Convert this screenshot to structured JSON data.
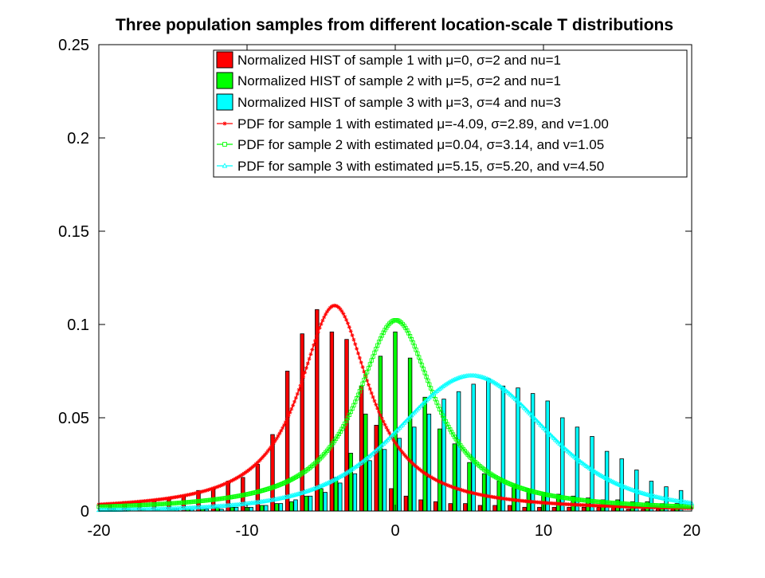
{
  "chart_data": {
    "type": "bar",
    "title": "Three population samples from different location-scale T distributions",
    "xlabel": "",
    "ylabel": "",
    "xlim": [
      -20,
      20
    ],
    "ylim": [
      0,
      0.25
    ],
    "xticks": [
      "-20",
      "-10",
      "0",
      "10",
      "20"
    ],
    "yticks": [
      "0",
      "0.05",
      "0.1",
      "0.15",
      "0.2",
      "0.25"
    ],
    "grid": false,
    "legend_position": "top-right",
    "colors": {
      "sample1": "#ff0000",
      "sample2": "#00ff00",
      "sample3": "#00ffff"
    },
    "histograms": [
      {
        "name": "Normalized HIST of sample 1 with μ=0, σ=2 and nu=1",
        "color": "#ff0000",
        "x": [
          -19,
          -18,
          -17,
          -16,
          -15,
          -14,
          -13,
          -12,
          -11,
          -10,
          -9,
          -8,
          -7,
          -6,
          -5,
          -4,
          -3,
          -2,
          -1,
          0,
          1,
          2,
          3,
          4,
          5,
          6,
          7,
          8,
          9,
          10,
          11,
          12,
          13,
          14,
          15,
          16,
          17,
          18,
          19
        ],
        "values": [
          0.004,
          0.005,
          0.005,
          0.006,
          0.007,
          0.008,
          0.011,
          0.012,
          0.016,
          0.018,
          0.025,
          0.041,
          0.075,
          0.095,
          0.108,
          0.096,
          0.092,
          0.067,
          0.046,
          0.012,
          0.008,
          0.006,
          0.005,
          0.004,
          0.004,
          0.003,
          0.003,
          0.003,
          0.002,
          0.002,
          0.002,
          0.002,
          0.002,
          0.002,
          0.002,
          0.001,
          0.001,
          0.001,
          0.001
        ]
      },
      {
        "name": "Normalized HIST of sample 2 with μ=5, σ=2 and nu=1",
        "color": "#00ff00",
        "x": [
          -19,
          -18,
          -17,
          -16,
          -15,
          -14,
          -13,
          -12,
          -11,
          -10,
          -9,
          -8,
          -7,
          -6,
          -5,
          -4,
          -3,
          -2,
          -1,
          0,
          1,
          2,
          3,
          4,
          5,
          6,
          7,
          8,
          9,
          10,
          11,
          12,
          13,
          14,
          15,
          16,
          17,
          18,
          19
        ],
        "values": [
          0.001,
          0.001,
          0.001,
          0.001,
          0.001,
          0.001,
          0.001,
          0.002,
          0.002,
          0.002,
          0.003,
          0.004,
          0.005,
          0.008,
          0.012,
          0.018,
          0.031,
          0.052,
          0.083,
          0.096,
          0.082,
          0.061,
          0.044,
          0.036,
          0.026,
          0.02,
          0.016,
          0.014,
          0.012,
          0.01,
          0.009,
          0.008,
          0.007,
          0.006,
          0.006,
          0.005,
          0.005,
          0.004,
          0.004
        ]
      },
      {
        "name": "Normalized HIST of sample 3 with μ=3, σ=4 and nu=3",
        "color": "#00ffff",
        "x": [
          -19,
          -18,
          -17,
          -16,
          -15,
          -14,
          -13,
          -12,
          -11,
          -10,
          -9,
          -8,
          -7,
          -6,
          -5,
          -4,
          -3,
          -2,
          -1,
          0,
          1,
          2,
          3,
          4,
          5,
          6,
          7,
          8,
          9,
          10,
          11,
          12,
          13,
          14,
          15,
          16,
          17,
          18,
          19
        ],
        "values": [
          0.0,
          0.0,
          0.0,
          0.0,
          0.001,
          0.001,
          0.001,
          0.001,
          0.002,
          0.002,
          0.003,
          0.004,
          0.006,
          0.008,
          0.01,
          0.015,
          0.02,
          0.027,
          0.033,
          0.039,
          0.045,
          0.052,
          0.06,
          0.064,
          0.068,
          0.071,
          0.067,
          0.066,
          0.063,
          0.059,
          0.05,
          0.045,
          0.04,
          0.032,
          0.028,
          0.022,
          0.016,
          0.013,
          0.011
        ]
      }
    ],
    "series": [
      {
        "name": "PDF for sample 1 with estimated μ=-4.09, σ=2.89, and v=1.00",
        "color": "#ff0000",
        "marker": "star",
        "mu": -4.09,
        "sigma": 2.89,
        "nu": 1.0
      },
      {
        "name": "PDF for sample 2 with estimated μ=0.04, σ=3.14, and v=1.05",
        "color": "#00ff00",
        "marker": "square",
        "mu": 0.04,
        "sigma": 3.14,
        "nu": 1.05
      },
      {
        "name": "PDF for sample 3 with estimated μ=5.15, σ=5.20, and v=4.50",
        "color": "#00ffff",
        "marker": "triangle",
        "mu": 5.15,
        "sigma": 5.2,
        "nu": 4.5
      }
    ]
  }
}
